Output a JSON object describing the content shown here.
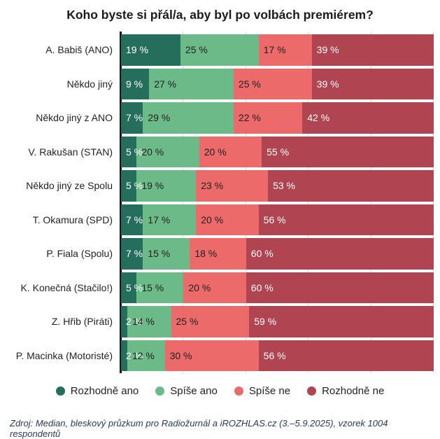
{
  "title": "Koho byste si přál/a, aby byl po volbách premiérem?",
  "source": "Zdroj: Median, bleskový průzkum pro Radiožurnál a iROZHLAS.cz (3.–5.9.2025), vzorek 1004 respondentů",
  "chart_data": {
    "type": "bar",
    "orientation": "horizontal",
    "stacked": true,
    "title": "Koho byste si přál/a, aby byl po volbách premiérem?",
    "xlabel": "",
    "ylabel": "",
    "xlim": [
      0,
      100
    ],
    "value_suffix": " %",
    "grid": "vertical gridlines every 20 %",
    "legend_position": "bottom",
    "axis_color": "#151515",
    "gridline_color": "#d8d8d8",
    "categories": [
      "A. Babiš (ANO)",
      "Někdo jiný",
      "Někdo jiný z ANO",
      "V. Rakušan (STAN)",
      "Někdo jiný ze Spolu",
      "T. Okamura (SPD)",
      "P. Fiala (Spolu)",
      "K. Konečná (Stačilo!)",
      "Z. Hřib (Piráti)",
      "P. Macinka (Motoristé)"
    ],
    "series": [
      {
        "name": "Rozhodně ano",
        "color": "#266e5c",
        "label_color": "#ffffff",
        "values": [
          19,
          9,
          7,
          5,
          5,
          7,
          7,
          5,
          2,
          2
        ]
      },
      {
        "name": "Spíše ano",
        "color": "#6cba88",
        "label_color": "#222222",
        "values": [
          25,
          27,
          29,
          20,
          19,
          17,
          15,
          15,
          14,
          12
        ]
      },
      {
        "name": "Spíše ne",
        "color": "#ec6a6a",
        "label_color": "#222222",
        "values": [
          17,
          25,
          22,
          20,
          23,
          20,
          18,
          20,
          25,
          30
        ]
      },
      {
        "name": "Rozhodně ne",
        "color": "#b04450",
        "label_color": "#ffffff",
        "values": [
          39,
          39,
          42,
          55,
          53,
          56,
          60,
          60,
          59,
          56
        ]
      }
    ],
    "gridline_positions_pct": [
      20,
      40,
      60,
      80,
      100
    ]
  }
}
